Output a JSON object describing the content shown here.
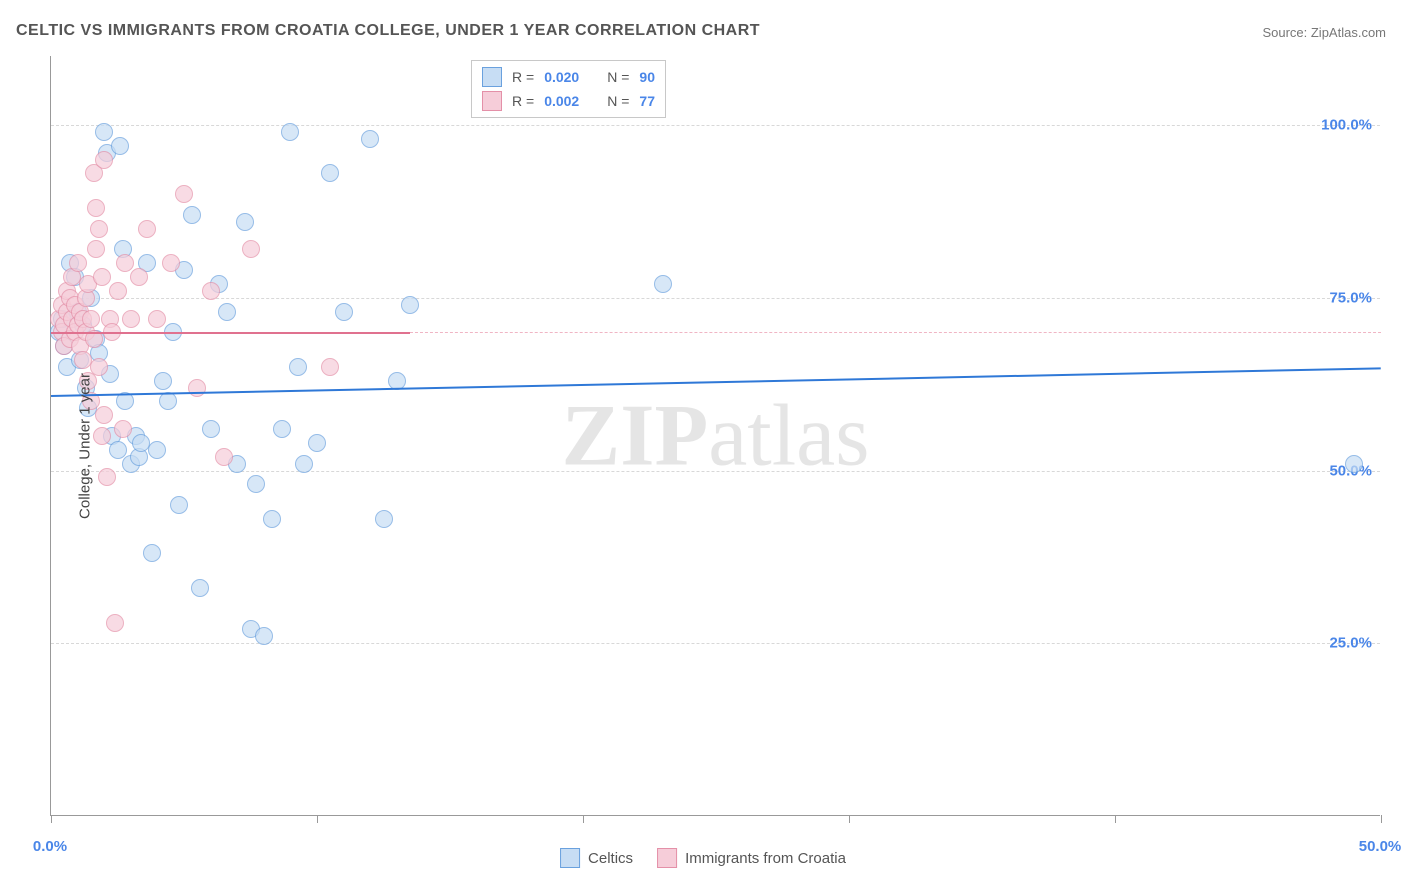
{
  "title": "CELTIC VS IMMIGRANTS FROM CROATIA COLLEGE, UNDER 1 YEAR CORRELATION CHART",
  "source": "Source: ZipAtlas.com",
  "watermark_bold": "ZIP",
  "watermark_rest": "atlas",
  "y_axis_label": "College, Under 1 year",
  "chart": {
    "type": "scatter",
    "xlim": [
      0,
      50
    ],
    "ylim": [
      0,
      110
    ],
    "y_gridlines": [
      25,
      50,
      75,
      100
    ],
    "y_tick_labels": [
      "25.0%",
      "50.0%",
      "75.0%",
      "100.0%"
    ],
    "x_ticks": [
      0,
      10,
      20,
      30,
      40,
      50
    ],
    "x_tick_labels_shown": {
      "0": "0.0%",
      "50": "50.0%"
    },
    "y_tick_color": "#4a86e8",
    "x_tick_color": "#4a86e8",
    "background_color": "#ffffff",
    "grid_color": "#d8d8d8",
    "marker_radius": 9,
    "marker_border_width": 1,
    "series": [
      {
        "name": "Celtics",
        "fill": "#c7ddf4",
        "stroke": "#6aa1de",
        "fill_opacity": 0.7,
        "trend": {
          "y_start": 61,
          "y_end": 65,
          "x_start": 0,
          "x_end": 50,
          "color": "#2f78d7",
          "width": 2,
          "dash": false
        },
        "points": [
          [
            0.3,
            70
          ],
          [
            0.4,
            72
          ],
          [
            0.5,
            68
          ],
          [
            0.6,
            65
          ],
          [
            0.7,
            80
          ],
          [
            0.9,
            78
          ],
          [
            1.0,
            73
          ],
          [
            1.1,
            66
          ],
          [
            1.2,
            71
          ],
          [
            1.3,
            62
          ],
          [
            1.4,
            59
          ],
          [
            1.5,
            75
          ],
          [
            1.7,
            69
          ],
          [
            1.8,
            67
          ],
          [
            2.0,
            99
          ],
          [
            2.1,
            96
          ],
          [
            2.2,
            64
          ],
          [
            2.3,
            55
          ],
          [
            2.5,
            53
          ],
          [
            2.6,
            97
          ],
          [
            2.7,
            82
          ],
          [
            2.8,
            60
          ],
          [
            3.0,
            51
          ],
          [
            3.2,
            55
          ],
          [
            3.3,
            52
          ],
          [
            3.4,
            54
          ],
          [
            3.6,
            80
          ],
          [
            3.8,
            38
          ],
          [
            4.0,
            53
          ],
          [
            4.2,
            63
          ],
          [
            4.4,
            60
          ],
          [
            4.6,
            70
          ],
          [
            4.8,
            45
          ],
          [
            5.0,
            79
          ],
          [
            5.3,
            87
          ],
          [
            5.6,
            33
          ],
          [
            6.0,
            56
          ],
          [
            6.3,
            77
          ],
          [
            6.6,
            73
          ],
          [
            7.0,
            51
          ],
          [
            7.3,
            86
          ],
          [
            7.5,
            27
          ],
          [
            7.7,
            48
          ],
          [
            8.0,
            26
          ],
          [
            8.3,
            43
          ],
          [
            8.7,
            56
          ],
          [
            9.0,
            99
          ],
          [
            9.3,
            65
          ],
          [
            9.5,
            51
          ],
          [
            10.0,
            54
          ],
          [
            10.5,
            93
          ],
          [
            11.0,
            73
          ],
          [
            12.0,
            98
          ],
          [
            12.5,
            43
          ],
          [
            13.0,
            63
          ],
          [
            13.5,
            74
          ],
          [
            23.0,
            77
          ],
          [
            49.0,
            51
          ]
        ]
      },
      {
        "name": "Immigrants from Croatia",
        "fill": "#f6cdd9",
        "stroke": "#e490a8",
        "fill_opacity": 0.7,
        "trend": {
          "y_start": 70,
          "y_end": 70,
          "x_start": 0,
          "x_end": 13.5,
          "color": "#e0718f",
          "width": 2,
          "dash": false
        },
        "trend_ext": {
          "y_start": 70,
          "y_end": 70,
          "x_start": 13.5,
          "x_end": 50,
          "color": "#f0b5c4",
          "width": 1,
          "dash": true
        },
        "points": [
          [
            0.3,
            72
          ],
          [
            0.4,
            70
          ],
          [
            0.4,
            74
          ],
          [
            0.5,
            71
          ],
          [
            0.5,
            68
          ],
          [
            0.6,
            73
          ],
          [
            0.6,
            76
          ],
          [
            0.7,
            75
          ],
          [
            0.7,
            69
          ],
          [
            0.8,
            72
          ],
          [
            0.8,
            78
          ],
          [
            0.9,
            70
          ],
          [
            0.9,
            74
          ],
          [
            1.0,
            71
          ],
          [
            1.0,
            80
          ],
          [
            1.1,
            68
          ],
          [
            1.1,
            73
          ],
          [
            1.2,
            72
          ],
          [
            1.2,
            66
          ],
          [
            1.3,
            70
          ],
          [
            1.3,
            75
          ],
          [
            1.4,
            77
          ],
          [
            1.4,
            63
          ],
          [
            1.5,
            72
          ],
          [
            1.5,
            60
          ],
          [
            1.6,
            93
          ],
          [
            1.6,
            69
          ],
          [
            1.7,
            82
          ],
          [
            1.7,
            88
          ],
          [
            1.8,
            85
          ],
          [
            1.8,
            65
          ],
          [
            1.9,
            55
          ],
          [
            1.9,
            78
          ],
          [
            2.0,
            58
          ],
          [
            2.0,
            95
          ],
          [
            2.1,
            49
          ],
          [
            2.2,
            72
          ],
          [
            2.3,
            70
          ],
          [
            2.4,
            28
          ],
          [
            2.5,
            76
          ],
          [
            2.7,
            56
          ],
          [
            2.8,
            80
          ],
          [
            3.0,
            72
          ],
          [
            3.3,
            78
          ],
          [
            3.6,
            85
          ],
          [
            4.0,
            72
          ],
          [
            4.5,
            80
          ],
          [
            5.0,
            90
          ],
          [
            5.5,
            62
          ],
          [
            6.0,
            76
          ],
          [
            6.5,
            52
          ],
          [
            7.5,
            82
          ],
          [
            10.5,
            65
          ]
        ]
      }
    ]
  },
  "top_legend": {
    "rows": [
      {
        "swatch_fill": "#c7ddf4",
        "swatch_stroke": "#6aa1de",
        "r_label": "R =",
        "r_val": "0.020",
        "n_label": "N =",
        "n_val": "90"
      },
      {
        "swatch_fill": "#f6cdd9",
        "swatch_stroke": "#e490a8",
        "r_label": "R =",
        "r_val": "0.002",
        "n_label": "N =",
        "n_val": "77"
      }
    ],
    "value_color": "#4a86e8",
    "label_color": "#555555"
  },
  "bottom_legend": {
    "items": [
      {
        "swatch_fill": "#c7ddf4",
        "swatch_stroke": "#6aa1de",
        "label": "Celtics"
      },
      {
        "swatch_fill": "#f6cdd9",
        "swatch_stroke": "#e490a8",
        "label": "Immigrants from Croatia"
      }
    ]
  }
}
